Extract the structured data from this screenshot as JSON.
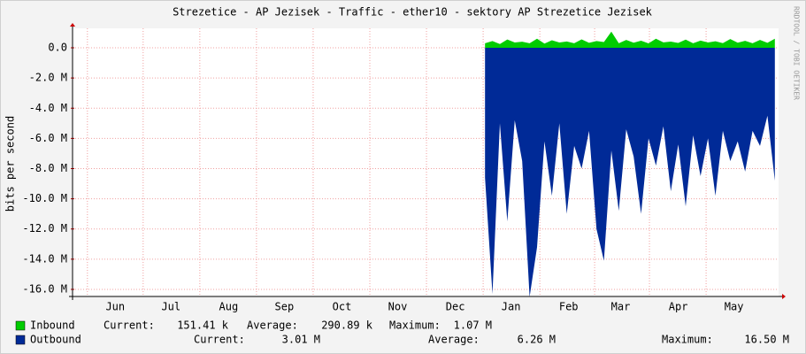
{
  "chart_data": {
    "type": "area",
    "title": "Strezetice - AP Jezisek - Traffic - ether10 - sektory AP Strezetice Jezisek",
    "y_label": "bits per second",
    "watermark": "RRDTOOL / TOBI OETIKER",
    "grid": true,
    "xlim": [
      0,
      380
    ],
    "xticks": [
      {
        "value": 23,
        "label": "Jun"
      },
      {
        "value": 53,
        "label": "Jul"
      },
      {
        "value": 84,
        "label": "Aug"
      },
      {
        "value": 114,
        "label": "Sep"
      },
      {
        "value": 145,
        "label": "Oct"
      },
      {
        "value": 175,
        "label": "Nov"
      },
      {
        "value": 206,
        "label": "Dec"
      },
      {
        "value": 236,
        "label": "Jan"
      },
      {
        "value": 267,
        "label": "Feb"
      },
      {
        "value": 295,
        "label": "Mar"
      },
      {
        "value": 326,
        "label": "Apr"
      },
      {
        "value": 356,
        "label": "May"
      }
    ],
    "ylim": [
      -16470000,
      1290000
    ],
    "yticks": [
      {
        "value": 0,
        "label": "0.0"
      },
      {
        "value": -2000000,
        "label": "-2.0 M"
      },
      {
        "value": -4000000,
        "label": "-4.0 M"
      },
      {
        "value": -6000000,
        "label": "-6.0 M"
      },
      {
        "value": -8000000,
        "label": "-8.0 M"
      },
      {
        "value": -10000000,
        "label": "-10.0 M"
      },
      {
        "value": -12000000,
        "label": "-12.0 M"
      },
      {
        "value": -14000000,
        "label": "-14.0 M"
      },
      {
        "value": -16000000,
        "label": "-16.0 M"
      }
    ],
    "x": [
      222,
      226,
      230,
      234,
      238,
      242,
      246,
      250,
      254,
      258,
      262,
      266,
      270,
      274,
      278,
      282,
      286,
      290,
      294,
      298,
      302,
      306,
      310,
      314,
      318,
      322,
      326,
      330,
      334,
      338,
      342,
      346,
      350,
      354,
      358,
      362,
      366,
      370,
      374,
      378
    ],
    "series": [
      {
        "name": "Inbound",
        "color": "#00cc00",
        "values": [
          300000,
          450000,
          250000,
          550000,
          350000,
          400000,
          300000,
          600000,
          280000,
          500000,
          350000,
          420000,
          300000,
          560000,
          330000,
          450000,
          380000,
          1070000,
          300000,
          520000,
          340000,
          470000,
          290000,
          600000,
          360000,
          410000,
          320000,
          540000,
          300000,
          480000,
          350000,
          430000,
          310000,
          580000,
          340000,
          460000,
          300000,
          520000,
          330000,
          600000
        ],
        "stats": [
          {
            "label": "Current:",
            "value": "151.41 k"
          },
          {
            "label": "Average:",
            "value": "290.89 k"
          },
          {
            "label": "Maximum:",
            "value": "1.07 M"
          }
        ]
      },
      {
        "name": "Outbound",
        "color": "#002a97",
        "values": [
          -8600000,
          -16300000,
          -5000000,
          -11500000,
          -4800000,
          -7500000,
          -16500000,
          -13200000,
          -6200000,
          -9800000,
          -5000000,
          -11000000,
          -6500000,
          -8000000,
          -5500000,
          -12000000,
          -14100000,
          -6800000,
          -10800000,
          -5400000,
          -7200000,
          -11000000,
          -6000000,
          -7800000,
          -5200000,
          -9500000,
          -6400000,
          -10500000,
          -5800000,
          -8500000,
          -6000000,
          -9800000,
          -5500000,
          -7500000,
          -6200000,
          -8200000,
          -5500000,
          -6500000,
          -4500000,
          -8800000
        ],
        "stats": [
          {
            "label": "Current:",
            "value": "3.01 M"
          },
          {
            "label": "Average:",
            "value": "6.26 M"
          },
          {
            "label": "Maximum:",
            "value": "16.50 M"
          }
        ]
      }
    ]
  }
}
